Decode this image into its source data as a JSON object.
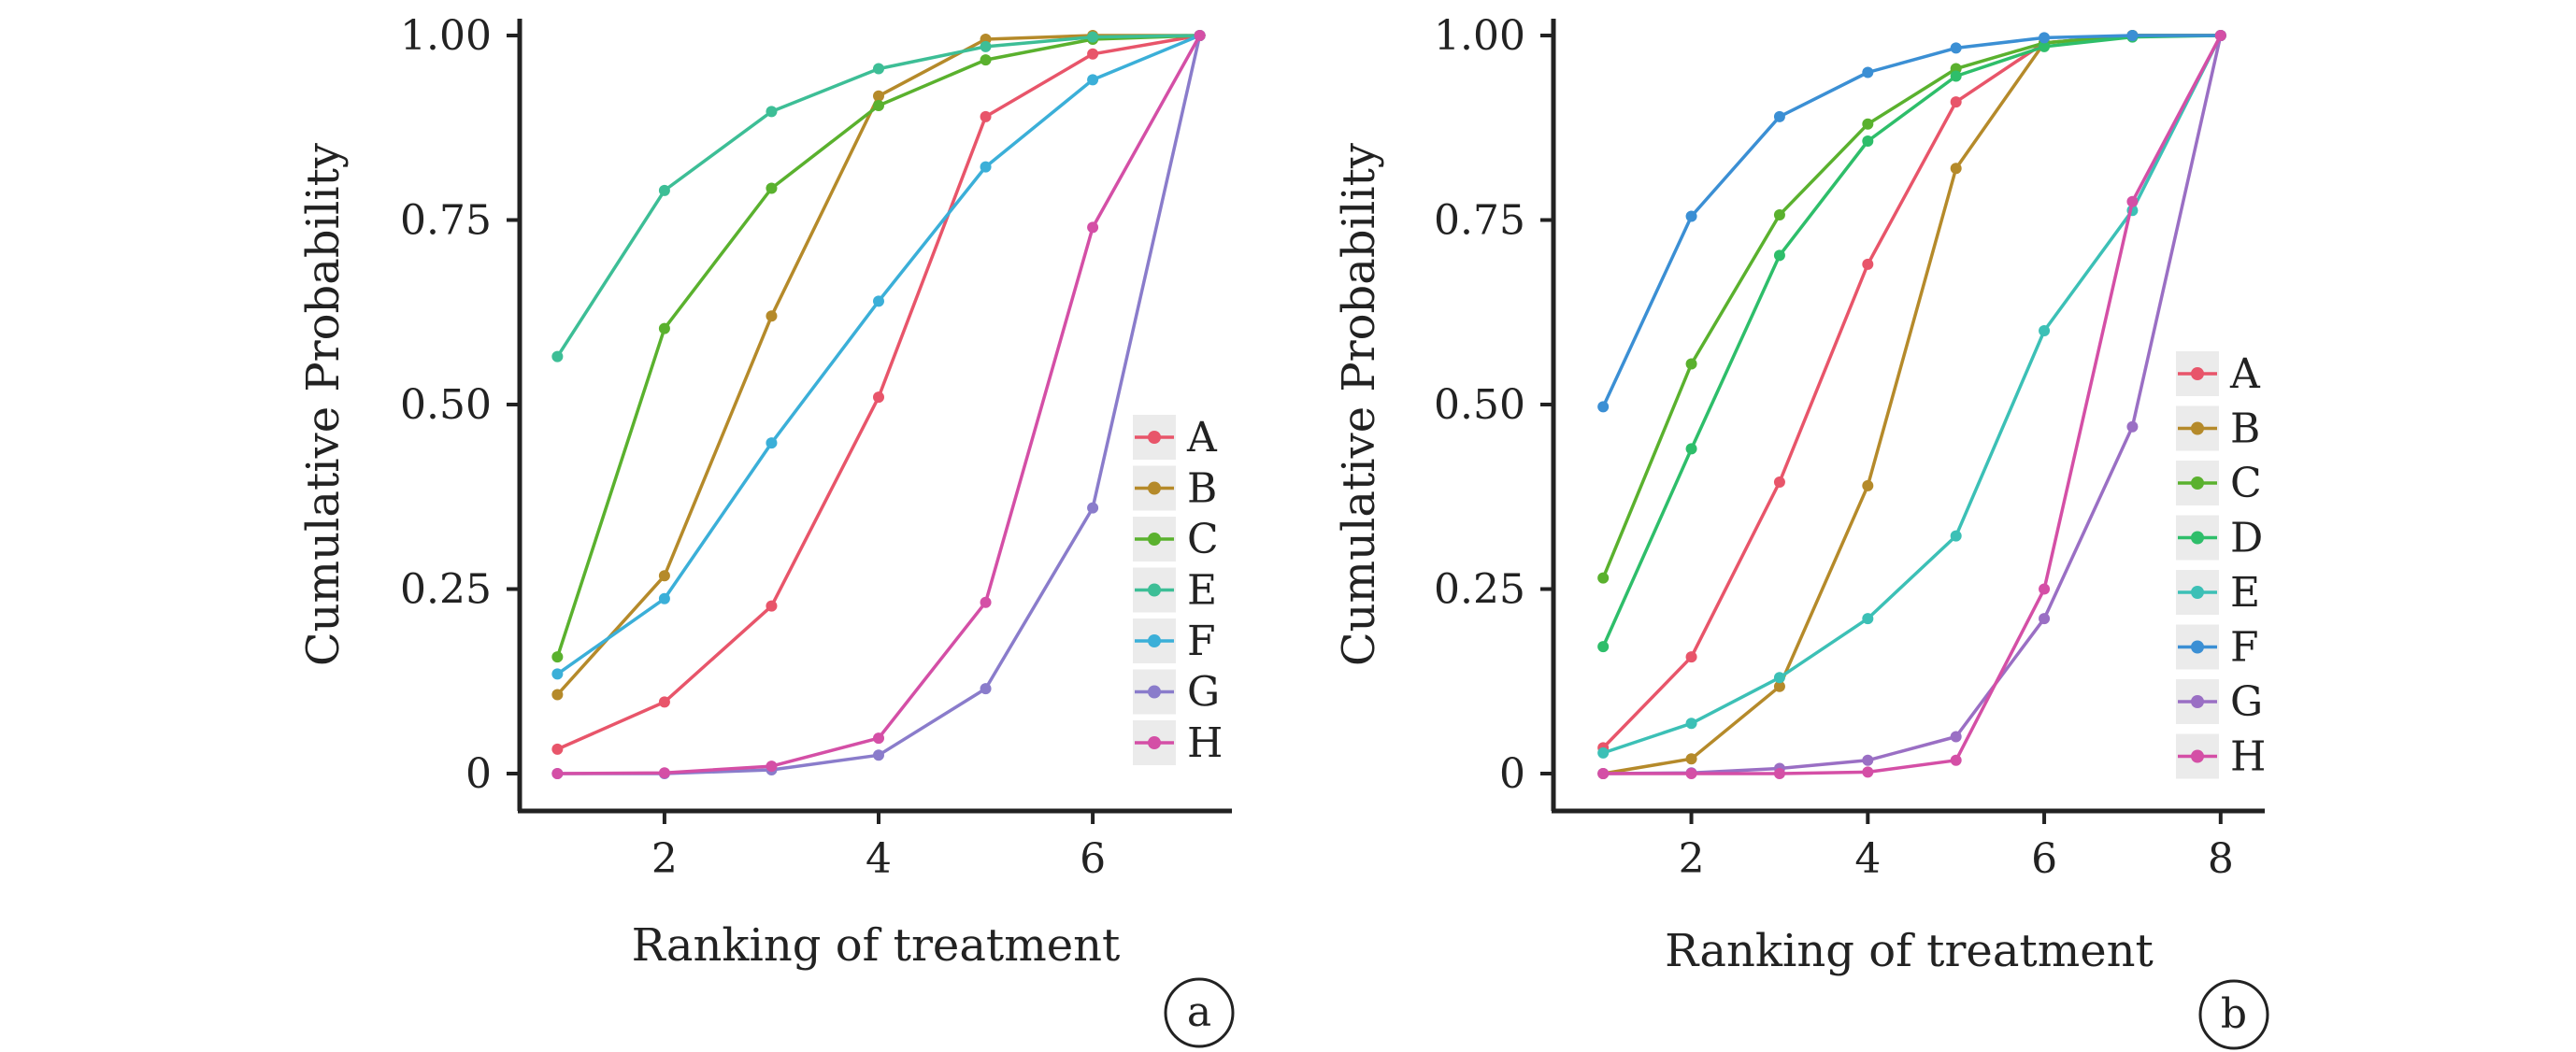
{
  "chart_data": [
    {
      "panel_label": "a",
      "type": "line",
      "xlabel": "Ranking of treatment",
      "ylabel": "Cumulative Probability",
      "xlim": [
        0.7,
        7.3
      ],
      "ylim": [
        -0.05,
        1.05
      ],
      "xticks": [
        2,
        4,
        6
      ],
      "yticks": [
        0,
        0.25,
        0.5,
        0.75,
        1.0
      ],
      "ytick_labels": [
        "0",
        "0.25",
        "0.50",
        "0.75",
        "1.00"
      ],
      "grid": false,
      "legend_position": "right",
      "x": [
        1,
        2,
        3,
        4,
        5,
        6,
        7
      ],
      "series": [
        {
          "name": "A",
          "color": "#E8556A",
          "values": [
            0.033,
            0.097,
            0.227,
            0.51,
            0.89,
            0.975,
            1.0
          ]
        },
        {
          "name": "B",
          "color": "#B58A2A",
          "values": [
            0.107,
            0.268,
            0.62,
            0.918,
            0.995,
            1.0,
            1.0
          ]
        },
        {
          "name": "C",
          "color": "#5AB12E",
          "values": [
            0.158,
            0.603,
            0.793,
            0.905,
            0.967,
            0.995,
            1.0
          ]
        },
        {
          "name": "E",
          "color": "#3DBE96",
          "values": [
            0.565,
            0.79,
            0.897,
            0.955,
            0.985,
            0.998,
            1.0
          ]
        },
        {
          "name": "F",
          "color": "#3BAFD8",
          "values": [
            0.135,
            0.237,
            0.448,
            0.64,
            0.822,
            0.94,
            1.0
          ]
        },
        {
          "name": "G",
          "color": "#8A7CCB",
          "values": [
            0.0,
            0.0,
            0.005,
            0.025,
            0.115,
            0.36,
            1.0
          ]
        },
        {
          "name": "H",
          "color": "#D44FA6",
          "values": [
            0.0,
            0.001,
            0.01,
            0.048,
            0.232,
            0.74,
            1.0
          ]
        }
      ]
    },
    {
      "panel_label": "b",
      "type": "line",
      "xlabel": "Ranking of treatment",
      "ylabel": "Cumulative Probability",
      "xlim": [
        0.5,
        8.5
      ],
      "ylim": [
        -0.05,
        1.05
      ],
      "xticks": [
        2,
        4,
        6,
        8
      ],
      "yticks": [
        0,
        0.25,
        0.5,
        0.75,
        1.0
      ],
      "ytick_labels": [
        "0",
        "0.25",
        "0.50",
        "0.75",
        "1.00"
      ],
      "grid": false,
      "legend_position": "right",
      "x": [
        1,
        2,
        3,
        4,
        5,
        6,
        7,
        8
      ],
      "series": [
        {
          "name": "A",
          "color": "#E8556A",
          "values": [
            0.035,
            0.158,
            0.395,
            0.69,
            0.91,
            0.99,
            1.0,
            1.0
          ]
        },
        {
          "name": "B",
          "color": "#B58A2A",
          "values": [
            0.0,
            0.02,
            0.118,
            0.39,
            0.82,
            0.99,
            1.0,
            1.0
          ]
        },
        {
          "name": "C",
          "color": "#5AB12E",
          "values": [
            0.265,
            0.555,
            0.757,
            0.88,
            0.955,
            0.99,
            1.0,
            1.0
          ]
        },
        {
          "name": "D",
          "color": "#2EBE6A",
          "values": [
            0.172,
            0.44,
            0.702,
            0.857,
            0.945,
            0.985,
            0.998,
            1.0
          ]
        },
        {
          "name": "E",
          "color": "#3CC0B6",
          "values": [
            0.028,
            0.068,
            0.13,
            0.21,
            0.322,
            0.6,
            0.763,
            1.0
          ]
        },
        {
          "name": "F",
          "color": "#3B8FD4",
          "values": [
            0.497,
            0.755,
            0.89,
            0.95,
            0.983,
            0.997,
            1.0,
            1.0
          ]
        },
        {
          "name": "G",
          "color": "#9A6FC4",
          "values": [
            0.0,
            0.001,
            0.007,
            0.018,
            0.05,
            0.21,
            0.47,
            1.0
          ]
        },
        {
          "name": "H",
          "color": "#D44FA6",
          "values": [
            0.0,
            0.0,
            0.0,
            0.002,
            0.018,
            0.25,
            0.775,
            1.0
          ]
        }
      ]
    }
  ]
}
